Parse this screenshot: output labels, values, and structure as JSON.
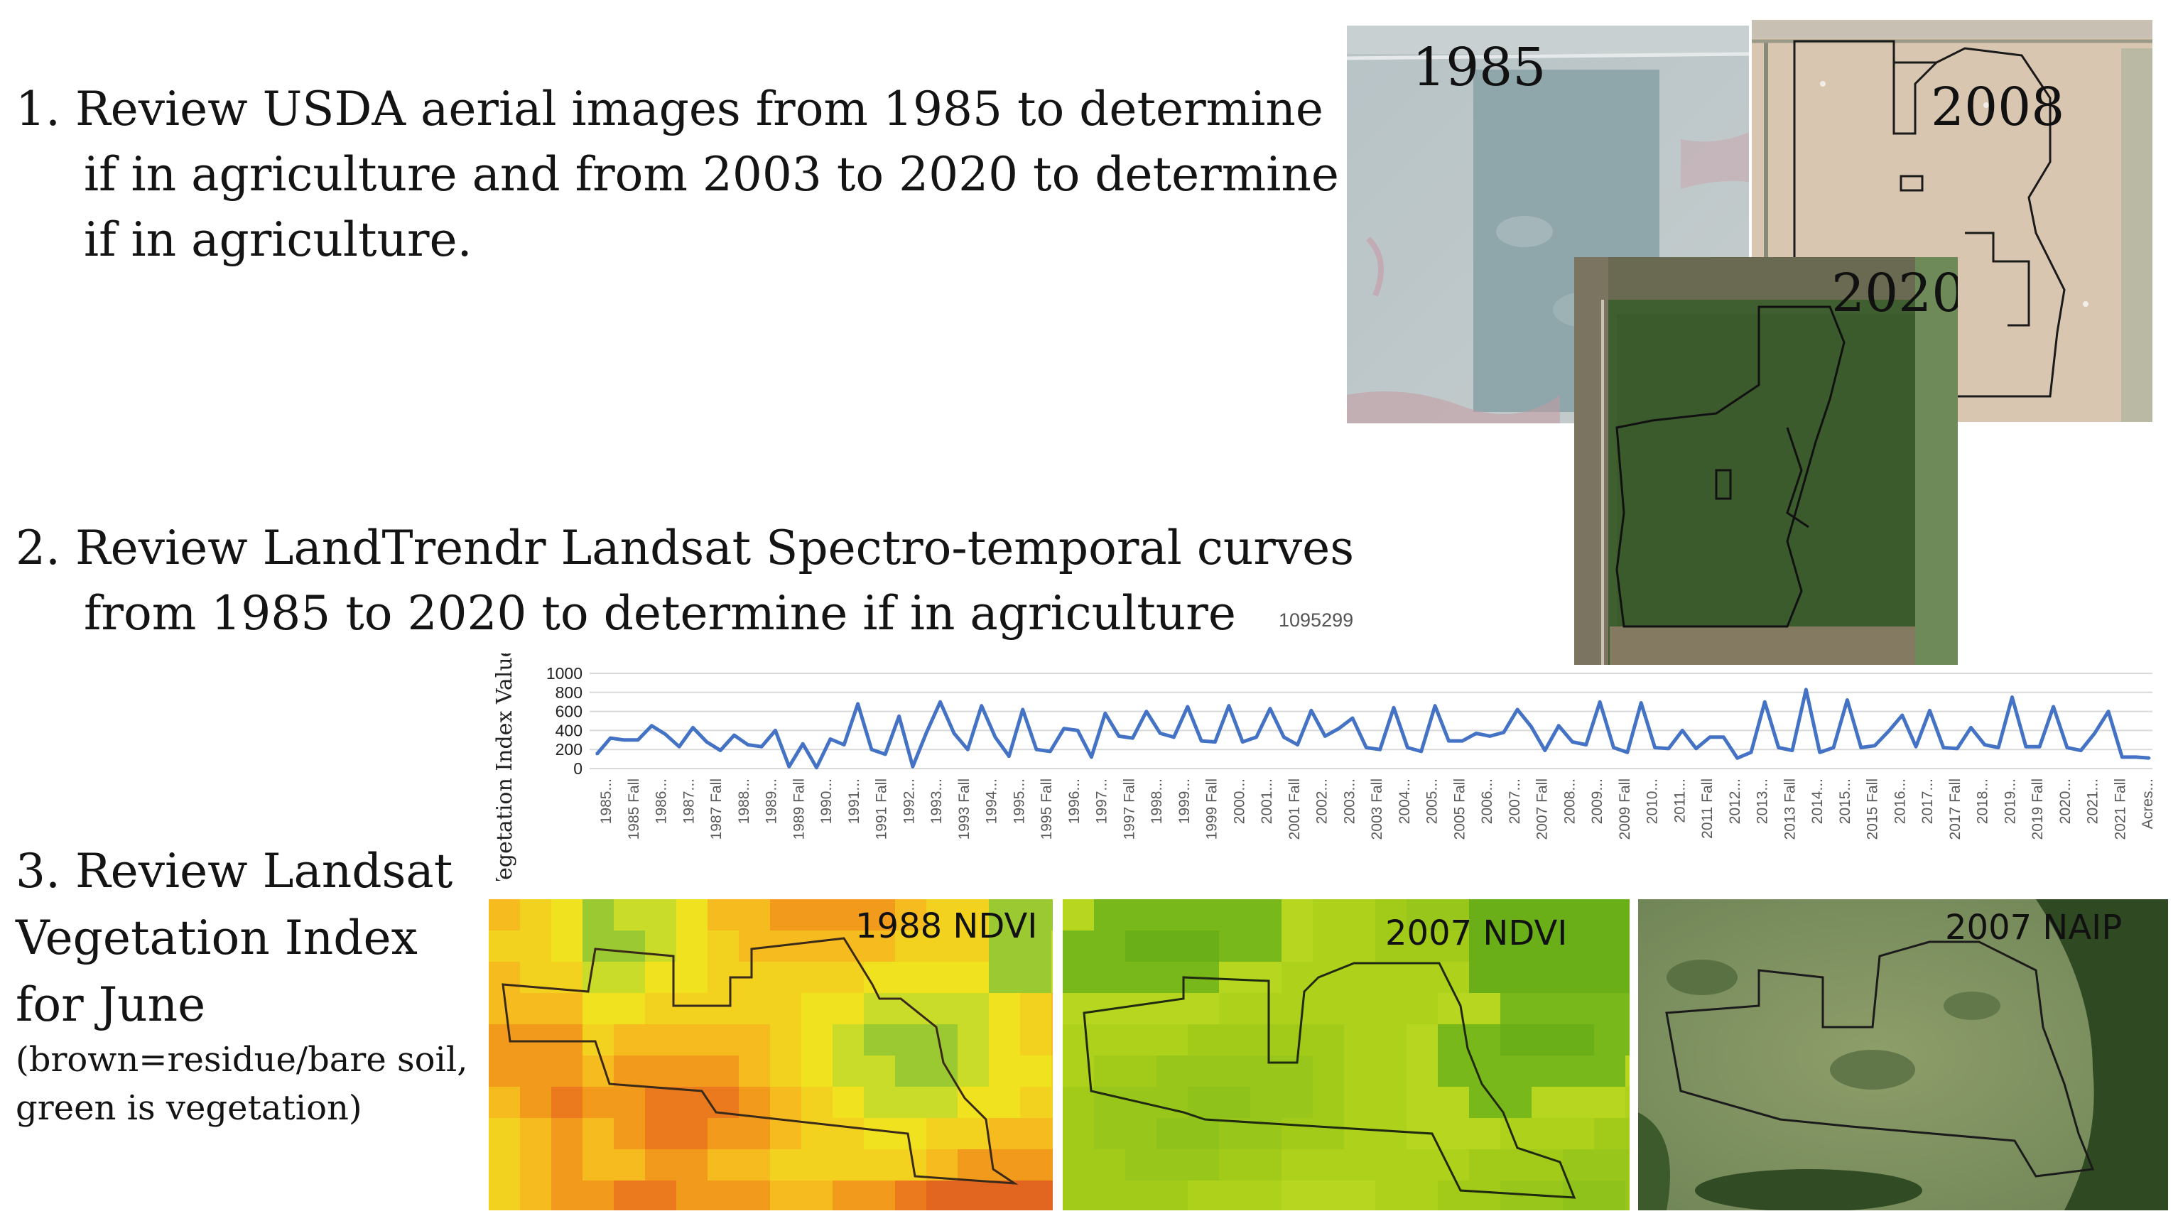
{
  "step1": {
    "lines": [
      "1.  Review USDA aerial images from 1985 to determine",
      "if in agriculture and from 2003 to 2020 to determine",
      "if in agriculture."
    ]
  },
  "step2": {
    "lines": [
      "2.  Review LandTrendr Landsat Spectro-temporal curves",
      "from 1985 to 2020 to determine if in agriculture"
    ]
  },
  "step3": {
    "lines": [
      "3.  Review Landsat",
      "Vegetation Index",
      "for June"
    ],
    "note_lines": [
      "(brown=residue/bare  soil,",
      "green is vegetation)"
    ]
  },
  "aerial_images": {
    "img_1985": "1985",
    "img_2008": "2008",
    "img_2020": "2020"
  },
  "index_images": {
    "ndvi_1988": "1988 NDVI",
    "ndvi_2007": "2007 NDVI",
    "naip_2007": "2007 NAIP"
  },
  "colors": {
    "series": "#4472c4",
    "gridline": "#d9d9d9",
    "axis_text": "#595959",
    "polygon_outline": "#1a1a1a"
  },
  "chart_data": {
    "type": "line",
    "id_label": "1095299",
    "ylabel": "Vegetation Index Values",
    "ylim": [
      0,
      1000
    ],
    "yticks": [
      0,
      200,
      400,
      600,
      800,
      1000
    ],
    "grid": true,
    "x_tick_labels": [
      "1985...",
      "1985 Fall",
      "1986...",
      "1987...",
      "1987 Fall",
      "1988...",
      "1989...",
      "1989 Fall",
      "1990...",
      "1991...",
      "1991 Fall",
      "1992...",
      "1993...",
      "1993 Fall",
      "1994...",
      "1995...",
      "1995 Fall",
      "1996...",
      "1997...",
      "1997 Fall",
      "1998...",
      "1999...",
      "1999 Fall",
      "2000...",
      "2001...",
      "2001 Fall",
      "2002...",
      "2003...",
      "2003 Fall",
      "2004...",
      "2005...",
      "2005 Fall",
      "2006...",
      "2007...",
      "2007 Fall",
      "2008...",
      "2009...",
      "2009 Fall",
      "2010...",
      "2011...",
      "2011 Fall",
      "2012...",
      "2013...",
      "2013 Fall",
      "2014...",
      "2015...",
      "2015 Fall",
      "2016...",
      "2017...",
      "2017 Fall",
      "2018...",
      "2019...",
      "2019 Fall",
      "2020...",
      "2021...",
      "2021 Fall",
      "Acres..."
    ],
    "values": [
      150,
      320,
      300,
      300,
      450,
      360,
      230,
      430,
      280,
      190,
      350,
      250,
      230,
      400,
      20,
      260,
      10,
      310,
      250,
      680,
      200,
      150,
      550,
      20,
      380,
      700,
      370,
      200,
      660,
      330,
      130,
      620,
      200,
      180,
      420,
      400,
      120,
      580,
      340,
      320,
      600,
      370,
      330,
      650,
      290,
      280,
      660,
      280,
      330,
      630,
      330,
      250,
      610,
      340,
      420,
      530,
      220,
      200,
      640,
      220,
      180,
      660,
      290,
      290,
      370,
      340,
      380,
      620,
      440,
      190,
      450,
      280,
      250,
      700,
      220,
      170,
      690,
      220,
      210,
      400,
      210,
      330,
      330,
      110,
      170,
      700,
      220,
      190,
      830,
      170,
      220,
      720,
      220,
      240,
      390,
      560,
      230,
      610,
      220,
      210,
      430,
      250,
      220,
      750,
      230,
      230,
      650,
      220,
      190,
      370,
      600,
      120,
      120,
      110
    ]
  }
}
